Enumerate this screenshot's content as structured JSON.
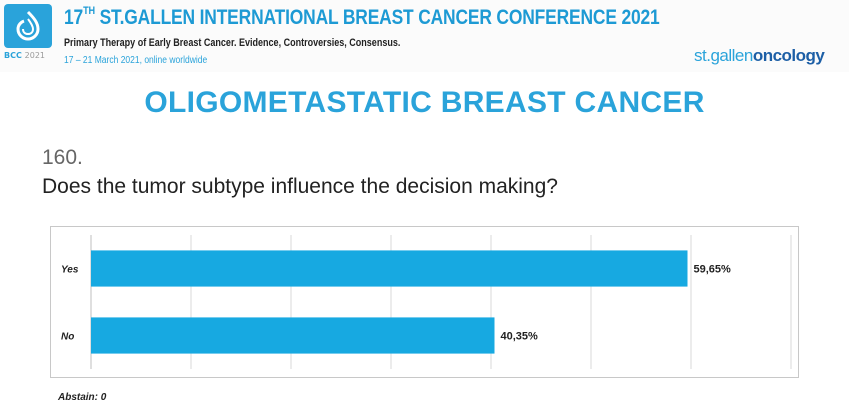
{
  "header": {
    "logo_caption": "BCC",
    "logo_year": "2021",
    "conference_number": "17",
    "conference_ordinal": "TH",
    "conference_title": "ST.GALLEN INTERNATIONAL BREAST CANCER CONFERENCE 2021",
    "subtitle": "Primary Therapy of Early Breast Cancer. Evidence, Controversies, Consensus.",
    "dates": "17 – 21 March 2021, online worldwide",
    "brand_prefix": "st.gallen",
    "brand_suffix": "oncology"
  },
  "slide": {
    "title": "OLIGOMETASTATIC BREAST CANCER",
    "question_number": "160.",
    "question_text": "Does the tumor subtype influence the decision making?",
    "abstain": "Abstain: 0"
  },
  "colors": {
    "accent": "#2aa3da",
    "bar": "#17a9e1",
    "grid": "#d9d9d9"
  },
  "chart_data": {
    "type": "bar",
    "orientation": "horizontal",
    "categories": [
      "Yes",
      "No"
    ],
    "values": [
      59.65,
      40.35
    ],
    "value_labels": [
      "59,65%",
      "40,35%"
    ],
    "xlim": [
      0,
      70
    ],
    "grid": true,
    "title": "",
    "xlabel": "",
    "ylabel": ""
  }
}
